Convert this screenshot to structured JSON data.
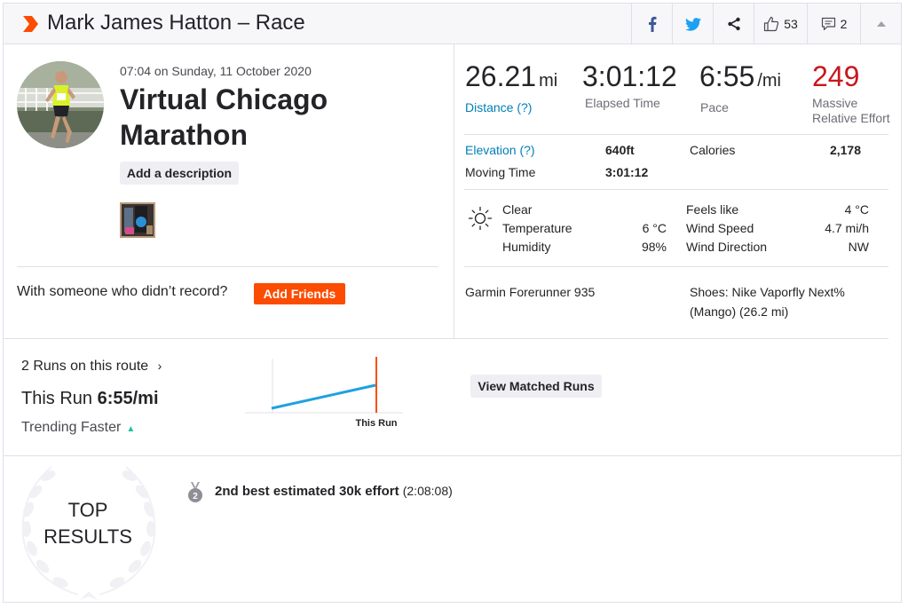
{
  "header": {
    "title": "Mark James Hatton – Race",
    "kudos_count": "53",
    "comment_count": "2"
  },
  "icons": {
    "logo": "strava-chevron-icon",
    "facebook": "facebook-icon",
    "twitter": "twitter-icon",
    "share": "share-icon",
    "kudos": "thumbs-up-icon",
    "comment": "comment-icon",
    "collapse": "caret-up-icon",
    "weather": "sun-icon",
    "medal": "silver-medal-icon"
  },
  "activity": {
    "datetime": "07:04 on Sunday, 11 October 2020",
    "name": "Virtual Chicago Marathon",
    "add_description": "Add a description",
    "with_someone": "With someone who didn’t record?",
    "add_friends": "Add Friends"
  },
  "stats": {
    "distance_value": "26.21",
    "distance_unit": "mi",
    "distance_label": "Distance (?)",
    "elapsed_value": "3:01:12",
    "elapsed_label": "Elapsed Time",
    "pace_value": "6:55",
    "pace_unit": "/mi",
    "pace_label": "Pace",
    "effort_value": "249",
    "effort_label_1": "Massive",
    "effort_label_2": "Relative Effort"
  },
  "details": {
    "elevation_label": "Elevation (?)",
    "elevation_value": "640ft",
    "calories_label": "Calories",
    "calories_value": "2,178",
    "moving_label": "Moving Time",
    "moving_value": "3:01:12"
  },
  "weather": {
    "condition": "Clear",
    "temperature_label": "Temperature",
    "temperature_value": "6 °C",
    "humidity_label": "Humidity",
    "humidity_value": "98%",
    "feels_like_label": "Feels like",
    "feels_like_value": "4 °C",
    "wind_speed_label": "Wind Speed",
    "wind_speed_value": "4.7 mi/h",
    "wind_direction_label": "Wind Direction",
    "wind_direction_value": "NW"
  },
  "gear": {
    "device": "Garmin Forerunner 935",
    "shoes_line1": "Shoes: Nike Vaporfly Next%",
    "shoes_line2": "(Mango) (26.2 mi)"
  },
  "matched_runs": {
    "runs_on_route": "2 Runs on this route",
    "this_run_prefix": "This Run",
    "this_run_pace": "6:55/mi",
    "trending": "Trending Faster",
    "chart_marker_label": "This Run",
    "view_button": "View Matched Runs"
  },
  "top_results": {
    "title_line1": "TOP",
    "title_line2": "RESULTS",
    "medal_rank": "2",
    "achievement": "2nd best estimated 30k effort",
    "achievement_time": "(2:08:08)"
  },
  "colors": {
    "brand": "#fc4c02",
    "link": "#007fb6",
    "effort_red": "#c8171e",
    "trend_line": "#1fa1e0",
    "trend_up": "#1fc39d",
    "facebook": "#3b5998",
    "twitter": "#1da1f2"
  }
}
